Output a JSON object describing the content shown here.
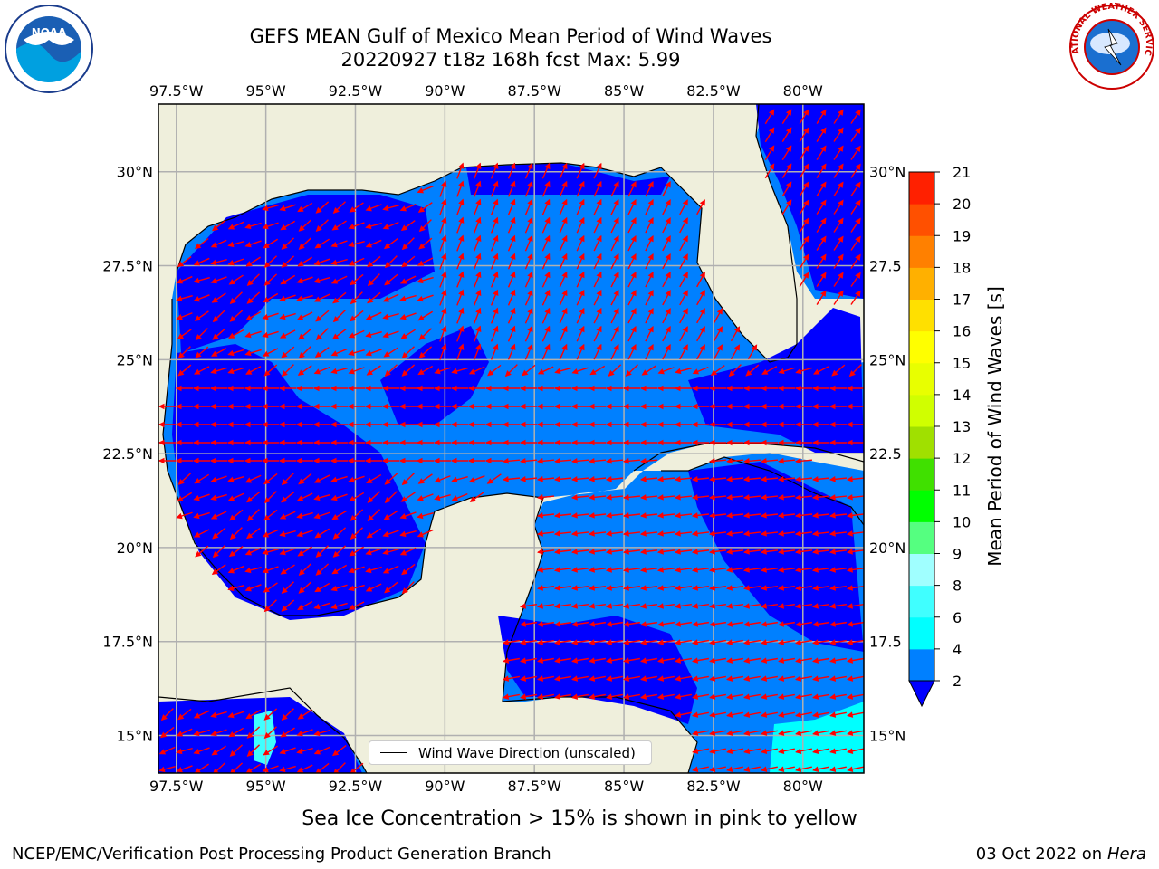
{
  "title": {
    "line1": "GEFS MEAN Gulf of Mexico Mean Period of Wind Waves",
    "line2": "20220927 t18z 168h fcst   Max: 5.99"
  },
  "logos": {
    "left": "noaa-logo",
    "right": "nws-logo",
    "nws_text": "NATIONAL WEATHER SERVICE",
    "noaa_text": "NOAA"
  },
  "map": {
    "lon_ticks": [
      "97.5°W",
      "95°W",
      "92.5°W",
      "90°W",
      "87.5°W",
      "85°W",
      "82.5°W",
      "80°W"
    ],
    "lon_values": [
      -97.5,
      -95,
      -92.5,
      -90,
      -87.5,
      -85,
      -82.5,
      -80
    ],
    "lat_ticks_left": [
      "30°N",
      "27.5°N",
      "25°N",
      "22.5°N",
      "20°N",
      "17.5°N",
      "15°N"
    ],
    "lat_ticks_right": [
      "30°N",
      "27.5",
      "25°N",
      "22.5",
      "20°N",
      "17.5",
      "15°N"
    ],
    "lat_values": [
      30,
      27.5,
      25,
      22.5,
      20,
      17.5,
      15
    ],
    "extent": {
      "lon_min": -98,
      "lon_max": -78.3,
      "lat_min": 14,
      "lat_max": 31.8
    },
    "legend": "Wind Wave Direction (unscaled)",
    "land_color": "#efefdc",
    "ocean_colors": {
      "2-4": "#0080ff",
      "below-2": "#0000ff",
      "4-6": "#00ffff"
    },
    "arrow_color": "#ff0000"
  },
  "colorbar": {
    "label": "Mean Period of Wind Waves [s]",
    "ticks": [
      "2",
      "4",
      "6",
      "8",
      "9",
      "10",
      "11",
      "12",
      "13",
      "14",
      "15",
      "16",
      "17",
      "18",
      "19",
      "20",
      "21"
    ],
    "colors": [
      "#0080ff",
      "#00ffff",
      "#40ffff",
      "#a0ffff",
      "#55ff80",
      "#00ff00",
      "#40e000",
      "#a0e000",
      "#d0ff00",
      "#e8ff00",
      "#ffff00",
      "#ffe000",
      "#ffb000",
      "#ff8000",
      "#ff5000",
      "#ff2000"
    ],
    "under_color": "#0000ff"
  },
  "footer": {
    "ice_note": "Sea Ice Concentration > 15% is shown in pink to yellow",
    "credit": "NCEP/EMC/Verification Post Processing Product Generation Branch",
    "date": "03 Oct 2022 on ",
    "host": "Hera"
  }
}
